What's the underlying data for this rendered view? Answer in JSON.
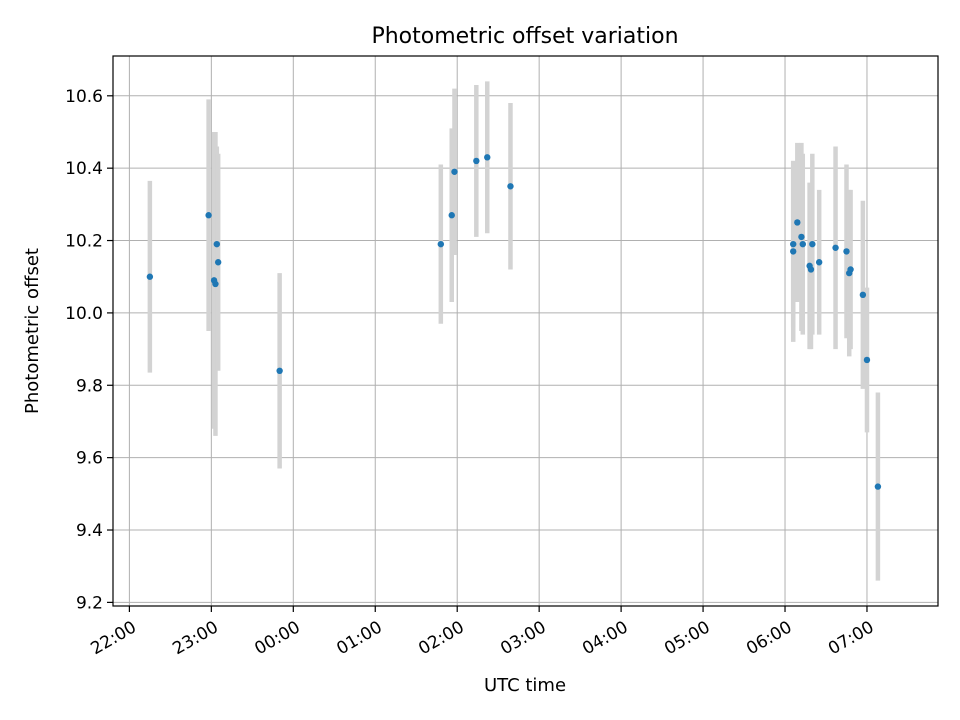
{
  "chart_data": {
    "type": "scatter",
    "title": "Photometric offset variation",
    "xlabel": "UTC time",
    "ylabel": "Photometric offset",
    "x_axis_kind": "time",
    "xlim": [
      "21:48",
      "07:52"
    ],
    "ylim": [
      9.19,
      10.71
    ],
    "x_ticks": [
      "22:00",
      "23:00",
      "00:00",
      "01:00",
      "02:00",
      "03:00",
      "04:00",
      "05:00",
      "06:00",
      "07:00"
    ],
    "y_ticks": [
      9.2,
      9.4,
      9.6,
      9.8,
      10.0,
      10.2,
      10.4,
      10.6
    ],
    "y_tick_labels": [
      "9.2",
      "9.4",
      "9.6",
      "9.8",
      "10.0",
      "10.2",
      "10.4",
      "10.6"
    ],
    "grid": true,
    "marker_color": "#1f77b4",
    "errorbar_color": "#d3d3d3",
    "points": [
      {
        "time": "22:15",
        "y": 10.1,
        "yerr": 0.265
      },
      {
        "time": "22:58",
        "y": 10.27,
        "yerr": 0.32
      },
      {
        "time": "23:02",
        "y": 10.09,
        "yerr": 0.41
      },
      {
        "time": "23:03",
        "y": 10.08,
        "yerr": 0.42
      },
      {
        "time": "23:04",
        "y": 10.19,
        "yerr": 0.27
      },
      {
        "time": "23:05",
        "y": 10.14,
        "yerr": 0.3
      },
      {
        "time": "23:50",
        "y": 9.84,
        "yerr": 0.27
      },
      {
        "time": "01:48",
        "y": 10.19,
        "yerr": 0.22
      },
      {
        "time": "01:56",
        "y": 10.27,
        "yerr": 0.24
      },
      {
        "time": "01:58",
        "y": 10.39,
        "yerr": 0.23
      },
      {
        "time": "02:14",
        "y": 10.42,
        "yerr": 0.21
      },
      {
        "time": "02:22",
        "y": 10.43,
        "yerr": 0.21
      },
      {
        "time": "02:39",
        "y": 10.35,
        "yerr": 0.23
      },
      {
        "time": "06:06",
        "y": 10.17,
        "yerr": 0.25
      },
      {
        "time": "06:06",
        "y": 10.19,
        "yerr": 0.23
      },
      {
        "time": "06:09",
        "y": 10.25,
        "yerr": 0.22
      },
      {
        "time": "06:12",
        "y": 10.21,
        "yerr": 0.26
      },
      {
        "time": "06:13",
        "y": 10.19,
        "yerr": 0.25
      },
      {
        "time": "06:18",
        "y": 10.13,
        "yerr": 0.23
      },
      {
        "time": "06:19",
        "y": 10.12,
        "yerr": 0.22
      },
      {
        "time": "06:20",
        "y": 10.19,
        "yerr": 0.25
      },
      {
        "time": "06:25",
        "y": 10.14,
        "yerr": 0.2
      },
      {
        "time": "06:37",
        "y": 10.18,
        "yerr": 0.28
      },
      {
        "time": "06:45",
        "y": 10.17,
        "yerr": 0.24
      },
      {
        "time": "06:47",
        "y": 10.11,
        "yerr": 0.23
      },
      {
        "time": "06:48",
        "y": 10.12,
        "yerr": 0.22
      },
      {
        "time": "06:57",
        "y": 10.05,
        "yerr": 0.26
      },
      {
        "time": "07:00",
        "y": 9.87,
        "yerr": 0.2
      },
      {
        "time": "07:08",
        "y": 9.52,
        "yerr": 0.26
      }
    ]
  }
}
